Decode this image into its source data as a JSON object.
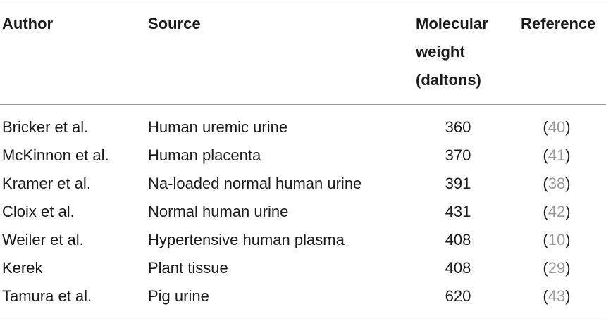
{
  "table": {
    "headers": {
      "author": "Author",
      "source": "Source",
      "mw": [
        "Molecular",
        "weight",
        "(daltons)"
      ],
      "reference": "Reference"
    },
    "rows": [
      {
        "author": "Bricker et al.",
        "source": "Human uremic urine",
        "mw": "360",
        "ref": "40"
      },
      {
        "author": "McKinnon et al.",
        "source": "Human placenta",
        "mw": "370",
        "ref": "41"
      },
      {
        "author": "Kramer et al.",
        "source": "Na-loaded normal human urine",
        "mw": "391",
        "ref": "38"
      },
      {
        "author": "Cloix et al.",
        "source": "Normal human urine",
        "mw": "431",
        "ref": "42"
      },
      {
        "author": "Weiler et al.",
        "source": "Hypertensive human plasma",
        "mw": "408",
        "ref": "10"
      },
      {
        "author": "Kerek",
        "source": "Plant tissue",
        "mw": "408",
        "ref": "29"
      },
      {
        "author": "Tamura et al.",
        "source": "Pig urine",
        "mw": "620",
        "ref": "43"
      }
    ]
  },
  "colors": {
    "rule": "#9a9a9a",
    "reference_number": "#9a9a9a",
    "text": "#1a1a1a"
  }
}
